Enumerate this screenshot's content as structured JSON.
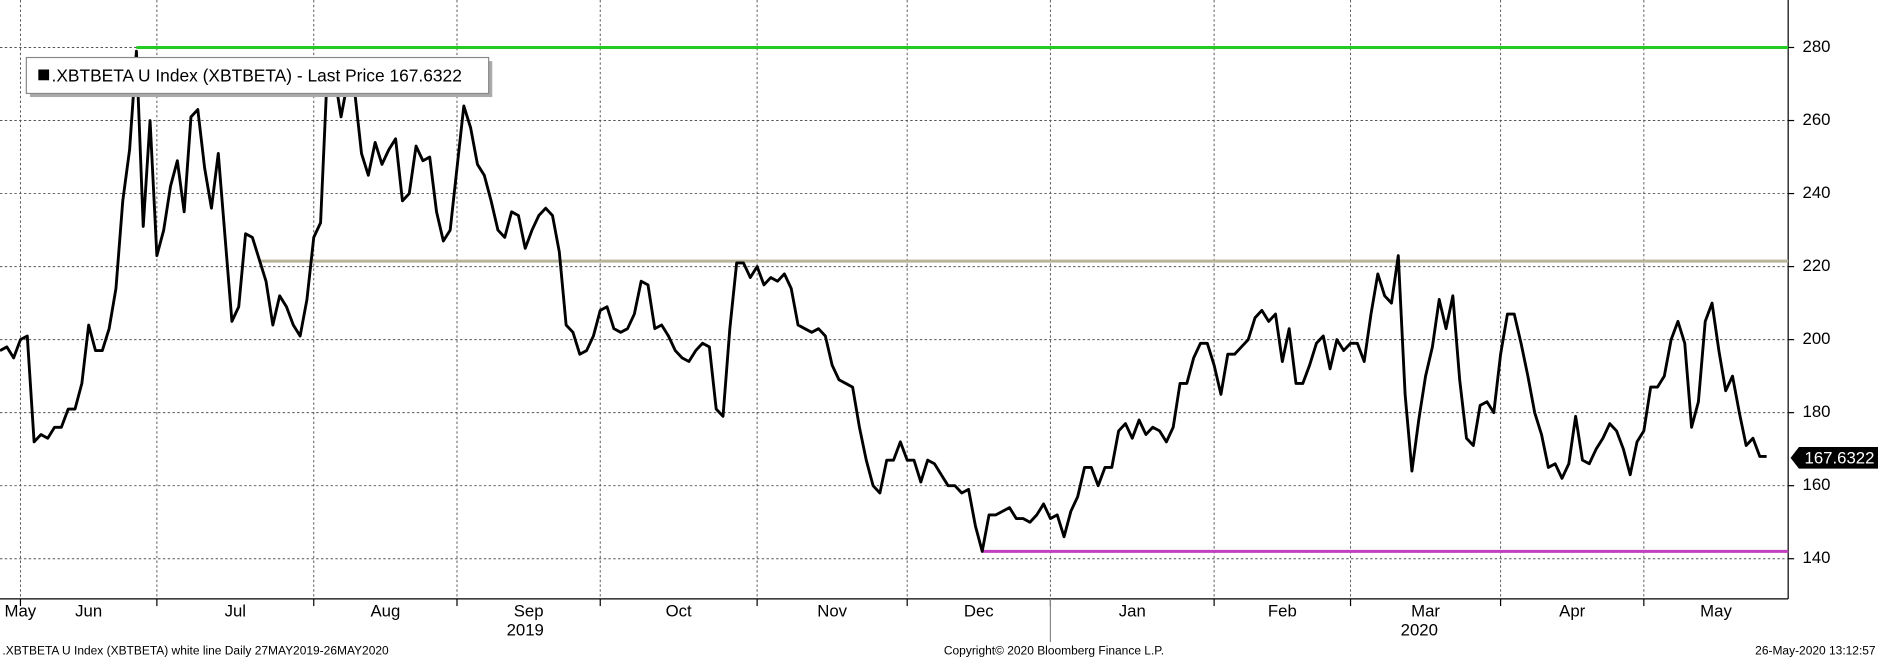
{
  "chart_data": {
    "type": "line",
    "legend": ".XBTBETA U Index (XBTBETA) - Last Price 167.6322",
    "footer_left": ".XBTBETA U Index (XBTBETA) white line  Daily 27MAY2019-26MAY2020",
    "footer_center": "Copyright© 2020 Bloomberg Finance L.P.",
    "footer_right": "26-May-2020 13:12:57",
    "last_price": 167.6322,
    "ylim": [
      129,
      293
    ],
    "yticks": [
      140,
      160,
      180,
      200,
      220,
      240,
      260,
      280
    ],
    "grid": true,
    "categories": [
      "May",
      null,
      null,
      "Jun",
      null,
      null,
      null,
      null,
      null,
      null,
      null,
      null,
      null,
      null,
      null,
      null,
      null,
      null,
      null,
      null,
      null,
      null,
      null,
      "Jul",
      null,
      null,
      null,
      null,
      null,
      null,
      null,
      null,
      null,
      null,
      null,
      null,
      null,
      null,
      null,
      null,
      null,
      null,
      null,
      null,
      null,
      null,
      "Aug",
      null,
      null,
      null,
      null,
      null,
      null,
      null,
      null,
      null,
      null,
      null,
      null,
      null,
      null,
      null,
      null,
      null,
      null,
      null,
      null,
      "Sep",
      null,
      null,
      null,
      null,
      null,
      null,
      null,
      null,
      null,
      null,
      null,
      null,
      null,
      null,
      null,
      null,
      null,
      null,
      null,
      null,
      "Oct",
      null,
      null,
      null,
      null,
      null,
      null,
      null,
      null,
      null,
      null,
      null,
      null,
      null,
      null,
      null,
      null,
      null,
      null,
      null,
      null,
      null,
      null,
      "Nov",
      null,
      null,
      null,
      null,
      null,
      null,
      null,
      null,
      null,
      null,
      null,
      null,
      null,
      null,
      null,
      null,
      null,
      null,
      null,
      null,
      null,
      "Dec",
      null,
      null,
      null,
      null,
      null,
      null,
      null,
      null,
      null,
      null,
      null,
      null,
      null,
      null,
      null,
      null,
      null,
      null,
      null,
      null,
      "Jan",
      null,
      null,
      null,
      null,
      null,
      null,
      null,
      null,
      null,
      null,
      null,
      null,
      null,
      null,
      null,
      null,
      null,
      null,
      null,
      null,
      null,
      null,
      null,
      "Feb",
      null,
      null,
      null,
      null,
      null,
      null,
      null,
      null,
      null,
      null,
      null,
      null,
      null,
      null,
      null,
      null,
      null,
      null,
      null,
      "Mar",
      null,
      null,
      null,
      null,
      null,
      null,
      null,
      null,
      null,
      null,
      null,
      null,
      null,
      null,
      null,
      null,
      null,
      null,
      null,
      null,
      null,
      "Apr",
      null,
      null,
      null,
      null,
      null,
      null,
      null,
      null,
      null,
      null,
      null,
      null,
      null,
      null,
      null,
      null,
      null,
      null,
      null,
      null,
      "May",
      null,
      null,
      null,
      null,
      null,
      null,
      null,
      null,
      null,
      null,
      null,
      null,
      null,
      null,
      null,
      null,
      null,
      null
    ],
    "year_categories": [
      "2019",
      null,
      null,
      null,
      null,
      null,
      null,
      null,
      null,
      null,
      null,
      null,
      null,
      null,
      null,
      null,
      null,
      null,
      null,
      null,
      null,
      null,
      null,
      null,
      null,
      null,
      null,
      null,
      null,
      null,
      null,
      null,
      null,
      null,
      null,
      null,
      null,
      null,
      null,
      null,
      null,
      null,
      null,
      null,
      null,
      null,
      null,
      null,
      null,
      null,
      null,
      null,
      null,
      null,
      null,
      null,
      null,
      null,
      null,
      null,
      null,
      null,
      null,
      null,
      null,
      null,
      null,
      null,
      null,
      null,
      null,
      null,
      null,
      null,
      null,
      null,
      null,
      null,
      null,
      null,
      null,
      null,
      null,
      null,
      null,
      null,
      null,
      null,
      null,
      null,
      null,
      null,
      null,
      null,
      null,
      null,
      null,
      null,
      null,
      null,
      null,
      null,
      null,
      null,
      null,
      null,
      null,
      null,
      null,
      null,
      null,
      null,
      null,
      null,
      null,
      null,
      null,
      null,
      null,
      null,
      null,
      null,
      null,
      null,
      null,
      null,
      null,
      null,
      null,
      null,
      null,
      null,
      null,
      null,
      null,
      null,
      null,
      null,
      null,
      null,
      null,
      null,
      null,
      null,
      null,
      null,
      null,
      null,
      null,
      null,
      null,
      null,
      null,
      null,
      "2020",
      null,
      null,
      null,
      null,
      null,
      null,
      null,
      null,
      null,
      null,
      null,
      null,
      null,
      null,
      null,
      null,
      null,
      null,
      null,
      null,
      null,
      null,
      null,
      null,
      null,
      null,
      null,
      null,
      null,
      null,
      null,
      null,
      null,
      null,
      null,
      null,
      null,
      null,
      null,
      null,
      null,
      null,
      null,
      null,
      null,
      null,
      null,
      null,
      null,
      null,
      null,
      null,
      null,
      null,
      null,
      null,
      null,
      null,
      null,
      null,
      null,
      null,
      null,
      null,
      null,
      null,
      null,
      null,
      null,
      null,
      null,
      null,
      null,
      null,
      null,
      null,
      null,
      null,
      null,
      null,
      null,
      null,
      null,
      null,
      null,
      null,
      null,
      null,
      null,
      null,
      null,
      null,
      null,
      null,
      null,
      null,
      null,
      null,
      null,
      null,
      null,
      null,
      null,
      null,
      null
    ],
    "series": [
      {
        "name": ".XBTBETA U Index (XBTBETA) - Last Price 167.6322",
        "color": "#000000",
        "values": [
          197,
          198,
          195,
          200,
          201,
          172,
          174,
          173,
          176,
          176,
          181,
          181,
          188,
          204,
          197,
          197,
          203,
          214,
          238,
          252,
          279,
          231,
          260,
          223,
          230,
          242,
          249,
          235,
          261,
          263,
          247,
          236,
          251,
          228,
          205,
          209,
          229,
          228,
          222,
          216,
          204,
          212,
          209,
          204,
          201,
          211,
          228,
          232,
          274,
          273,
          261,
          271,
          268,
          251,
          245,
          254,
          248,
          252,
          255,
          238,
          240,
          253,
          249,
          250,
          235,
          227,
          230,
          247,
          264,
          258,
          248,
          245,
          238,
          230,
          228,
          235,
          234,
          225,
          230,
          234,
          236,
          234,
          224,
          204,
          202,
          196,
          197,
          201,
          208,
          209,
          203,
          202,
          203,
          207,
          216,
          215,
          203,
          204,
          201,
          197,
          195,
          194,
          197,
          199,
          198,
          181,
          179,
          203,
          221,
          221,
          217,
          220,
          215,
          217,
          216,
          218,
          214,
          204,
          203,
          202,
          203,
          201,
          193,
          189,
          188,
          187,
          176,
          167,
          160,
          158,
          167,
          167,
          172,
          167,
          167,
          161,
          167,
          166,
          163,
          160,
          160,
          158,
          159,
          149,
          142,
          152,
          152,
          153,
          154,
          151,
          151,
          150,
          152,
          155,
          151,
          152,
          146,
          153,
          157,
          165,
          165,
          160,
          165,
          165,
          175,
          177,
          173,
          178,
          174,
          176,
          175,
          172,
          176,
          188,
          188,
          195,
          199,
          199,
          193,
          185,
          196,
          196,
          198,
          200,
          206,
          208,
          205,
          207,
          194,
          203,
          188,
          188,
          193,
          199,
          201,
          192,
          200,
          197,
          199,
          199,
          194,
          207,
          218,
          212,
          210,
          223,
          185,
          164,
          178,
          190,
          198,
          211,
          203,
          212,
          189,
          173,
          171,
          182,
          183,
          180,
          196,
          207,
          207,
          199,
          190,
          180,
          174,
          165,
          166,
          162,
          166,
          179,
          167,
          166,
          170,
          173,
          177,
          175,
          170,
          163,
          172,
          175,
          187,
          187,
          190,
          200,
          205,
          199,
          176,
          183,
          205,
          210,
          197,
          186,
          190,
          180,
          171,
          173,
          168,
          168
        ]
      }
    ],
    "hlines": [
      {
        "value": 280,
        "color": "#22cc22"
      },
      {
        "value": 221.5,
        "color": "#b8b49a"
      },
      {
        "value": 142,
        "color": "#c040c0"
      }
    ]
  }
}
